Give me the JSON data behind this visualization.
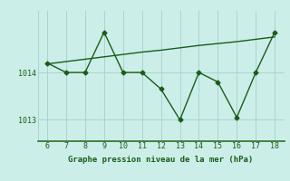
{
  "x": [
    6,
    7,
    8,
    9,
    10,
    11,
    12,
    13,
    14,
    15,
    16,
    17,
    18
  ],
  "y_main": [
    1014.2,
    1014.0,
    1014.0,
    1014.85,
    1014.0,
    1014.0,
    1013.65,
    1013.0,
    1014.0,
    1013.8,
    1013.05,
    1014.0,
    1014.85
  ],
  "y_trend": [
    1014.18,
    1014.23,
    1014.28,
    1014.33,
    1014.38,
    1014.43,
    1014.47,
    1014.52,
    1014.57,
    1014.61,
    1014.65,
    1014.7,
    1014.75
  ],
  "line_color": "#1a5c1a",
  "bg_color": "#cceee8",
  "grid_color": "#aad4ce",
  "border_color": "#2a6e2a",
  "xlabel": "Graphe pression niveau de la mer (hPa)",
  "xlim": [
    5.5,
    18.5
  ],
  "ylim": [
    1012.55,
    1015.3
  ],
  "yticks": [
    1013,
    1014
  ],
  "xticks": [
    6,
    7,
    8,
    9,
    10,
    11,
    12,
    13,
    14,
    15,
    16,
    17,
    18
  ],
  "marker": "D",
  "markersize": 2.5,
  "linewidth": 1.0,
  "xlabel_fontsize": 6.5,
  "tick_fontsize": 6.0
}
